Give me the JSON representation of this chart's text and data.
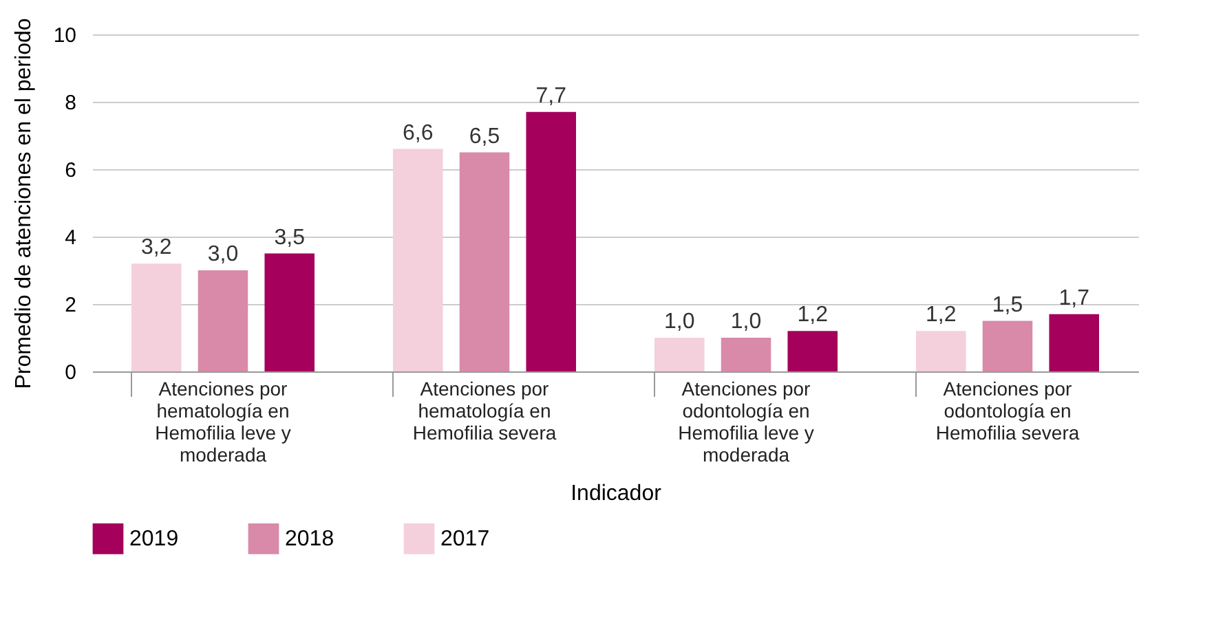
{
  "chart_data": {
    "type": "bar",
    "xlabel": "Indicador",
    "ylabel": "Promedio de atenciones en el periodo",
    "categories": [
      "Atenciones por hematología en Hemofilia leve y moderada",
      "Atenciones por hematología en Hemofilia severa",
      "Atenciones por odontología en Hemofilia leve y moderada",
      "Atenciones por odontología en Hemofilia severa"
    ],
    "series": [
      {
        "name": "2017",
        "color": "#f4d0dc",
        "values": [
          3.2,
          6.6,
          1.0,
          1.2
        ],
        "value_labels": [
          "3,2",
          "6,6",
          "1,0",
          "1,2"
        ]
      },
      {
        "name": "2018",
        "color": "#d98aa8",
        "values": [
          3.0,
          6.5,
          1.0,
          1.5
        ],
        "value_labels": [
          "3,0",
          "6,5",
          "1,0",
          "1,5"
        ]
      },
      {
        "name": "2019",
        "color": "#a5005b",
        "values": [
          3.5,
          7.7,
          1.2,
          1.7
        ],
        "value_labels": [
          "3,5",
          "7,7",
          "1,2",
          "1,7"
        ]
      }
    ],
    "ylim": [
      0,
      10
    ],
    "yticks": [
      0,
      2,
      4,
      6,
      8,
      10
    ],
    "grid": "y",
    "legend": "bottom"
  }
}
